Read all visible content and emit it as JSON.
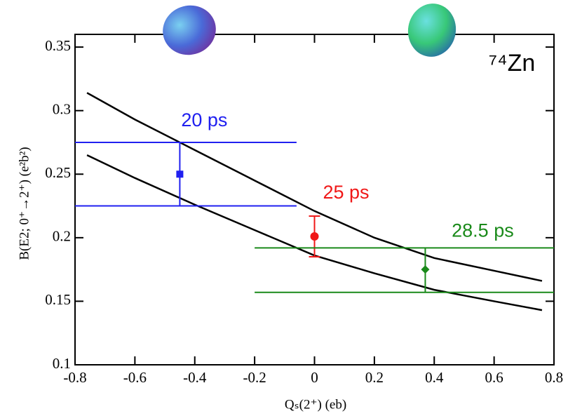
{
  "chart_data": {
    "type": "errorbar",
    "x_label": "Qₛ(2⁺)  (eb)",
    "y_label": "B(E2; 0⁺→2⁺)  (e²b²)",
    "annotation": "⁷⁴Zn",
    "xlim": [
      -0.8,
      0.8
    ],
    "ylim": [
      0.1,
      0.36
    ],
    "xticks": [
      -0.8,
      -0.6,
      -0.4,
      -0.2,
      0,
      0.2,
      0.4,
      0.6,
      0.8
    ],
    "yticks": [
      0.1,
      0.15,
      0.2,
      0.25,
      0.3,
      0.35
    ],
    "curves": [
      {
        "color": "#000000",
        "x": [
          -0.76,
          -0.6,
          -0.4,
          -0.2,
          0,
          0.2,
          0.4,
          0.6,
          0.76
        ],
        "y": [
          0.314,
          0.293,
          0.269,
          0.245,
          0.221,
          0.2,
          0.184,
          0.174,
          0.166
        ]
      },
      {
        "color": "#000000",
        "x": [
          -0.76,
          -0.6,
          -0.4,
          -0.2,
          0,
          0.2,
          0.4,
          0.6,
          0.76
        ],
        "y": [
          0.265,
          0.247,
          0.226,
          0.206,
          0.186,
          0.172,
          0.159,
          0.15,
          0.143
        ]
      }
    ],
    "measurements": [
      {
        "label": "20 ps",
        "color": "#2020f0",
        "marker": "square",
        "x": -0.45,
        "y": 0.25,
        "y_low": 0.225,
        "y_high": 0.275,
        "band_x": [
          -0.8,
          -0.06
        ]
      },
      {
        "label": "25 ps",
        "color": "#f01818",
        "marker": "circle",
        "x": 0,
        "y": 0.201,
        "y_low": 0.185,
        "y_high": 0.217,
        "band_x": null
      },
      {
        "label": "28.5 ps",
        "color": "#1a8a1a",
        "marker": "diamond",
        "x": 0.37,
        "y": 0.175,
        "y_low": 0.157,
        "y_high": 0.192,
        "band_x": [
          -0.2,
          0.8
        ]
      }
    ]
  }
}
